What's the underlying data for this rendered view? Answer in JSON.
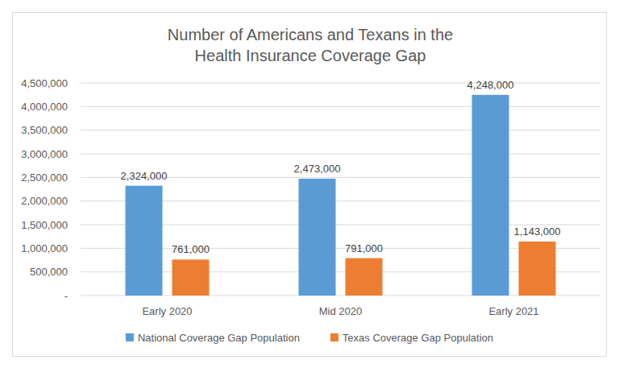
{
  "chart_data": {
    "type": "bar",
    "title": "Number of Americans and Texans in the\nHealth Insurance Coverage Gap",
    "categories": [
      "Early 2020",
      "Mid 2020",
      "Early 2021"
    ],
    "series": [
      {
        "name": "National Coverage Gap Population",
        "color": "#5b9bd5",
        "values": [
          2324000,
          2473000,
          4248000
        ],
        "value_labels": [
          "2,324,000",
          "2,473,000",
          "4,248,000"
        ]
      },
      {
        "name": "Texas Coverage Gap Population",
        "color": "#ed7d31",
        "values": [
          761000,
          791000,
          1143000
        ],
        "value_labels": [
          "761,000",
          "791,000",
          "1,143,000"
        ]
      }
    ],
    "ylim": [
      0,
      4500000
    ],
    "yticks": [
      {
        "value": 0,
        "label": "-"
      },
      {
        "value": 500000,
        "label": "500,000"
      },
      {
        "value": 1000000,
        "label": "1,000,000"
      },
      {
        "value": 1500000,
        "label": "1,500,000"
      },
      {
        "value": 2000000,
        "label": "2,000,000"
      },
      {
        "value": 2500000,
        "label": "2,500,000"
      },
      {
        "value": 3000000,
        "label": "3,000,000"
      },
      {
        "value": 3500000,
        "label": "3,500,000"
      },
      {
        "value": 4000000,
        "label": "4,000,000"
      },
      {
        "value": 4500000,
        "label": "4,500,000"
      }
    ],
    "grid": true,
    "legend": "bottom",
    "data_labels": true
  }
}
